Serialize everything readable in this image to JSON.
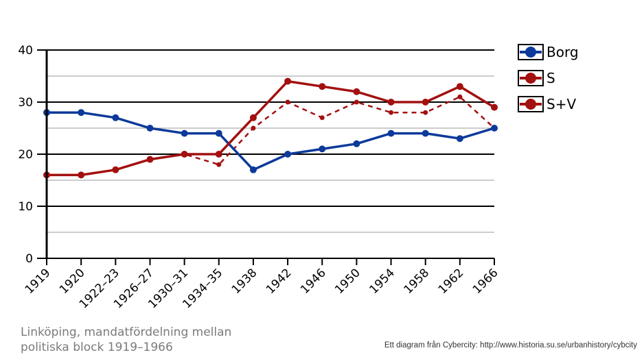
{
  "caption": {
    "line1": "Linköping, mandatfördelning mellan",
    "line2": "politiska block 1919–1966"
  },
  "credit": "Ett diagram från Cybercity: http://www.historia.su.se/urbanhistory/cybcity",
  "chart_data": {
    "type": "line",
    "categories": [
      "1919",
      "1920",
      "1922–23",
      "1926–27",
      "1930–31",
      "1934–35",
      "1938",
      "1942",
      "1946",
      "1950",
      "1954",
      "1958",
      "1962",
      "1966"
    ],
    "ylim": [
      0,
      40
    ],
    "yticks": [
      0,
      10,
      20,
      30,
      40
    ],
    "grid": true,
    "legend_position": "right",
    "series": [
      {
        "name": "Borg",
        "color": "#0d3a9a",
        "style": "solid",
        "values": [
          28,
          28,
          27,
          25,
          24,
          24,
          17,
          20,
          21,
          22,
          24,
          24,
          23,
          25
        ]
      },
      {
        "name": "S",
        "color": "#a31010",
        "style": "dashed",
        "values": [
          16,
          16,
          17,
          19,
          20,
          18,
          25,
          30,
          27,
          30,
          28,
          28,
          31,
          25
        ]
      },
      {
        "name": "S+V",
        "color": "#a31010",
        "style": "solid",
        "values": [
          16,
          16,
          17,
          19,
          20,
          20,
          27,
          34,
          33,
          32,
          30,
          30,
          33,
          29
        ]
      }
    ]
  }
}
